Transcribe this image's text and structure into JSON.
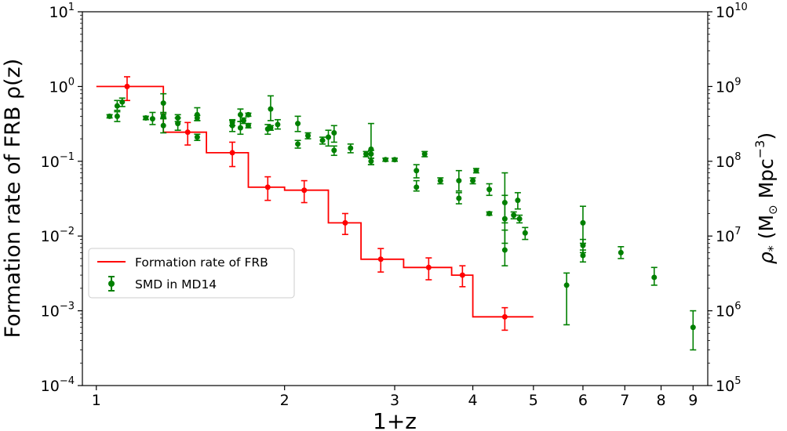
{
  "chart_data": {
    "type": "line",
    "x_scale": "log",
    "xlabel": "1+z",
    "ylabel_left": "Formation rate of FRB ρ(z)",
    "ylabel_right_base": "ρ",
    "ylabel_right_sub": "*",
    "ylabel_right_units": "(M",
    "ylabel_right_units2": "Mpc",
    "ylabel_right_sup": "−3",
    "ylabel_right_close": ")",
    "xlim": [
      0.95,
      9.5
    ],
    "x_ticks": [
      1,
      2,
      3,
      4,
      5,
      6,
      7,
      8,
      9
    ],
    "left_axis": {
      "scale": "log",
      "ylim": [
        0.0001,
        10
      ],
      "tick_exponents": [
        -4,
        -3,
        -2,
        -1,
        0,
        1
      ],
      "tick_base": "10"
    },
    "right_axis": {
      "scale": "log",
      "ylim": [
        100000,
        10000000000
      ],
      "tick_exponents": [
        5,
        6,
        7,
        8,
        9,
        10
      ],
      "tick_base": "10"
    },
    "legend": {
      "placement": "lower-left",
      "entries": [
        "Formation rate of FRB",
        "SMD in MD14"
      ]
    },
    "colors": {
      "frb": "#ff0000",
      "smd": "#008000"
    },
    "frb_step": {
      "name": "Formation rate of FRB",
      "axis": "left",
      "bins": [
        [
          1.0,
          1.28,
          1.0
        ],
        [
          1.28,
          1.5,
          0.245
        ],
        [
          1.5,
          1.75,
          0.13
        ],
        [
          1.75,
          2.0,
          0.045
        ],
        [
          2.0,
          2.35,
          0.041
        ],
        [
          2.35,
          2.65,
          0.015
        ],
        [
          2.65,
          3.1,
          0.0049
        ],
        [
          3.1,
          3.7,
          0.0038
        ],
        [
          3.7,
          4.0,
          0.003
        ],
        [
          4.0,
          5.0,
          0.00083
        ]
      ],
      "points": [
        [
          1.12,
          1.0,
          0.65,
          1.35
        ],
        [
          1.4,
          0.245,
          0.165,
          0.33
        ],
        [
          1.65,
          0.13,
          0.085,
          0.18
        ],
        [
          1.88,
          0.045,
          0.03,
          0.062
        ],
        [
          2.15,
          0.041,
          0.028,
          0.055
        ],
        [
          2.5,
          0.015,
          0.0105,
          0.02
        ],
        [
          2.85,
          0.0049,
          0.0033,
          0.0068
        ],
        [
          3.4,
          0.0038,
          0.0026,
          0.0051
        ],
        [
          3.85,
          0.003,
          0.0021,
          0.004
        ],
        [
          4.5,
          0.00083,
          0.00055,
          0.0011
        ]
      ]
    },
    "smd": {
      "name": "SMD in MD14",
      "axis": "right",
      "points": [
        [
          1.05,
          400000000,
          380000000,
          420000000
        ],
        [
          1.08,
          400000000,
          340000000,
          460000000
        ],
        [
          1.08,
          550000000,
          480000000,
          650000000
        ],
        [
          1.1,
          620000000,
          540000000,
          700000000
        ],
        [
          1.2,
          380000000,
          360000000,
          400000000
        ],
        [
          1.23,
          370000000,
          310000000,
          450000000
        ],
        [
          1.28,
          600000000,
          450000000,
          800000000
        ],
        [
          1.28,
          300000000,
          240000000,
          380000000
        ],
        [
          1.28,
          400000000,
          370000000,
          430000000
        ],
        [
          1.35,
          380000000,
          340000000,
          420000000
        ],
        [
          1.35,
          320000000,
          260000000,
          380000000
        ],
        [
          1.45,
          420000000,
          350000000,
          520000000
        ],
        [
          1.45,
          380000000,
          350000000,
          410000000
        ],
        [
          1.45,
          210000000,
          190000000,
          230000000
        ],
        [
          1.65,
          300000000,
          250000000,
          350000000
        ],
        [
          1.65,
          330000000,
          300000000,
          360000000
        ],
        [
          1.7,
          420000000,
          340000000,
          500000000
        ],
        [
          1.7,
          280000000,
          230000000,
          340000000
        ],
        [
          1.72,
          350000000,
          320000000,
          380000000
        ],
        [
          1.75,
          300000000,
          280000000,
          320000000
        ],
        [
          1.75,
          420000000,
          400000000,
          440000000
        ],
        [
          1.88,
          270000000,
          230000000,
          310000000
        ],
        [
          1.9,
          500000000,
          350000000,
          750000000
        ],
        [
          1.9,
          280000000,
          260000000,
          300000000
        ],
        [
          1.95,
          310000000,
          270000000,
          360000000
        ],
        [
          2.1,
          320000000,
          250000000,
          400000000
        ],
        [
          2.1,
          170000000,
          150000000,
          190000000
        ],
        [
          2.18,
          220000000,
          200000000,
          240000000
        ],
        [
          2.3,
          190000000,
          170000000,
          210000000
        ],
        [
          2.35,
          210000000,
          160000000,
          260000000
        ],
        [
          2.4,
          240000000,
          180000000,
          300000000
        ],
        [
          2.4,
          140000000,
          120000000,
          160000000
        ],
        [
          2.55,
          150000000,
          130000000,
          170000000
        ],
        [
          2.7,
          125000000,
          115000000,
          135000000
        ],
        [
          2.75,
          145000000,
          90000000,
          320000000
        ],
        [
          2.75,
          100000000,
          90000000,
          110000000
        ],
        [
          2.75,
          125000000,
          110000000,
          140000000
        ],
        [
          2.9,
          105000000,
          100000000,
          110000000
        ],
        [
          3.0,
          105000000,
          100000000,
          110000000
        ],
        [
          3.25,
          75000000,
          60000000,
          90000000
        ],
        [
          3.25,
          45000000,
          40000000,
          55000000
        ],
        [
          3.35,
          125000000,
          115000000,
          135000000
        ],
        [
          3.55,
          55000000,
          50000000,
          60000000
        ],
        [
          3.8,
          55000000,
          40000000,
          75000000
        ],
        [
          3.8,
          32000000,
          27000000,
          38000000
        ],
        [
          4.0,
          55000000,
          50000000,
          60000000
        ],
        [
          4.05,
          75000000,
          70000000,
          80000000
        ],
        [
          4.25,
          42000000,
          35000000,
          50000000
        ],
        [
          4.25,
          20000000,
          19000000,
          21000000
        ],
        [
          4.5,
          28000000,
          15000000,
          70000000
        ],
        [
          4.5,
          17000000,
          8000000,
          35000000
        ],
        [
          4.5,
          6500000,
          4000000,
          12000000
        ],
        [
          4.65,
          19000000,
          17000000,
          21000000
        ],
        [
          4.72,
          30000000,
          23000000,
          38000000
        ],
        [
          4.75,
          17000000,
          15000000,
          19000000
        ],
        [
          4.85,
          11000000,
          9000000,
          13000000
        ],
        [
          5.65,
          2200000,
          650000,
          3200000
        ],
        [
          6.0,
          15000000,
          8000000,
          25000000
        ],
        [
          6.0,
          7500000,
          6000000,
          9000000
        ],
        [
          6.0,
          5500000,
          4500000,
          6500000
        ],
        [
          6.9,
          6000000,
          5000000,
          7200000
        ],
        [
          7.8,
          2800000,
          2200000,
          3800000
        ],
        [
          9.0,
          600000,
          300000,
          1000000
        ]
      ]
    }
  }
}
